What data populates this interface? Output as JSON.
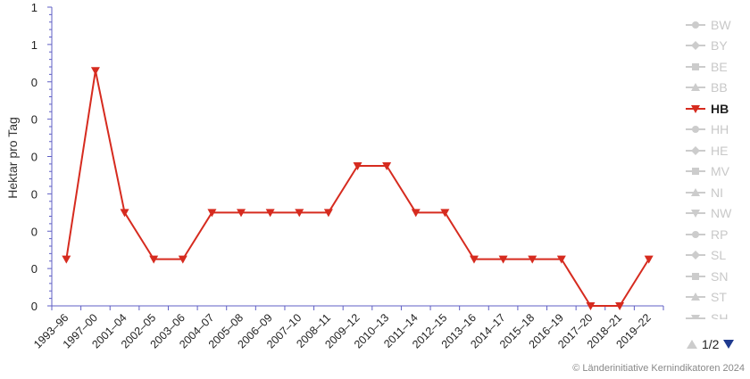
{
  "chart_data": {
    "type": "line",
    "ylabel": "Hektar pro Tag",
    "categories": [
      "1993–96",
      "1997–00",
      "2001–04",
      "2002–05",
      "2003–06",
      "2004–07",
      "2005–08",
      "2006–09",
      "2007–10",
      "2008–11",
      "2009–12",
      "2010–13",
      "2011–14",
      "2012–15",
      "2013–16",
      "2014–17",
      "2015–18",
      "2016–19",
      "2017–20",
      "2018–21",
      "2019–22"
    ],
    "series": [
      {
        "name": "HB",
        "color": "#d62b1f",
        "values": [
          0.125,
          0.63,
          0.25,
          0.125,
          0.125,
          0.25,
          0.25,
          0.25,
          0.25,
          0.25,
          0.375,
          0.375,
          0.25,
          0.25,
          0.125,
          0.125,
          0.125,
          0.125,
          0.0,
          0.0,
          0.125
        ]
      }
    ],
    "ylim": [
      0,
      0.8
    ],
    "yticks": [
      0,
      0.1,
      0.2,
      0.3,
      0.4,
      0.5,
      0.6,
      0.7,
      0.8
    ],
    "ytick_labels": [
      "0",
      "0",
      "0",
      "0",
      "0",
      "0",
      "0",
      "1",
      "1"
    ],
    "grid": false,
    "legend_position": "right"
  },
  "legend": {
    "items": [
      {
        "label": "BW",
        "symbol": "circle",
        "active": false
      },
      {
        "label": "BY",
        "symbol": "diamond",
        "active": false
      },
      {
        "label": "BE",
        "symbol": "square",
        "active": false
      },
      {
        "label": "BB",
        "symbol": "triangle",
        "active": false
      },
      {
        "label": "HB",
        "symbol": "triangle-down",
        "active": true
      },
      {
        "label": "HH",
        "symbol": "circle",
        "active": false
      },
      {
        "label": "HE",
        "symbol": "diamond",
        "active": false
      },
      {
        "label": "MV",
        "symbol": "square",
        "active": false
      },
      {
        "label": "NI",
        "symbol": "triangle",
        "active": false
      },
      {
        "label": "NW",
        "symbol": "triangle-down",
        "active": false
      },
      {
        "label": "RP",
        "symbol": "circle",
        "active": false
      },
      {
        "label": "SL",
        "symbol": "diamond",
        "active": false
      },
      {
        "label": "SN",
        "symbol": "square",
        "active": false
      },
      {
        "label": "ST",
        "symbol": "triangle",
        "active": false
      },
      {
        "label": "SH",
        "symbol": "triangle-down",
        "active": false
      }
    ],
    "page_text": "1/2"
  },
  "credits": "© Länderinitiative Kernindikatoren 2024"
}
